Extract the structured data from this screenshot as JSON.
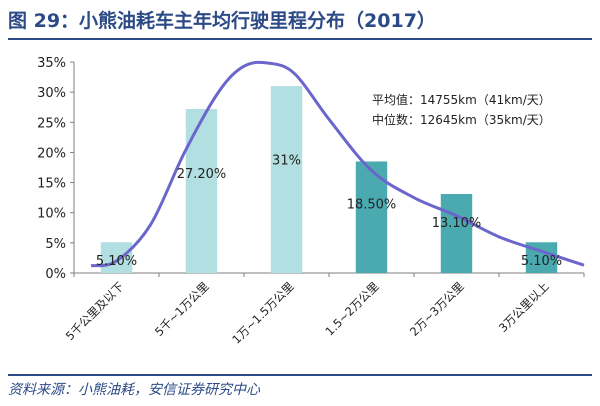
{
  "title": "图 29：小熊油耗车主年均行驶里程分布（2017）",
  "source": "资料来源：小熊油耗，安信证券研究中心",
  "chart_data": {
    "type": "bar",
    "categories": [
      "5千公里及以下",
      "5千~1万公里",
      "1万~1.5万公里",
      "1.5~2万公里",
      "2万~3万公里",
      "3万公里以上"
    ],
    "values": [
      5.1,
      27.2,
      31,
      18.5,
      13.1,
      5.1
    ],
    "data_labels": [
      "5.10%",
      "27.20%",
      "31%",
      "18.50%",
      "13.10%",
      "5.10%"
    ],
    "bar_colors": [
      "#b2dfe1",
      "#b2dfe1",
      "#b2dfe1",
      "#4baab0",
      "#4baab0",
      "#4baab0"
    ],
    "ylim": [
      0,
      35
    ],
    "yticks": [
      "0%",
      "5%",
      "10%",
      "15%",
      "20%",
      "25%",
      "30%",
      "35%"
    ],
    "curve": {
      "color": "#6b66cc",
      "points": [
        [
          -0.3,
          1.2
        ],
        [
          0,
          2.0
        ],
        [
          0.4,
          8.0
        ],
        [
          0.8,
          20.0
        ],
        [
          1.2,
          30.0
        ],
        [
          1.5,
          34.3
        ],
        [
          1.8,
          34.8
        ],
        [
          2.1,
          33.0
        ],
        [
          2.5,
          25.5
        ],
        [
          3.0,
          17.0
        ],
        [
          3.5,
          12.5
        ],
        [
          4.0,
          9.5
        ],
        [
          4.5,
          6.0
        ],
        [
          5.0,
          3.6
        ],
        [
          5.5,
          1.3
        ]
      ]
    },
    "annotations": [
      "平均值：14755km（41km/天）",
      "中位数：12645km（35km/天）"
    ]
  }
}
